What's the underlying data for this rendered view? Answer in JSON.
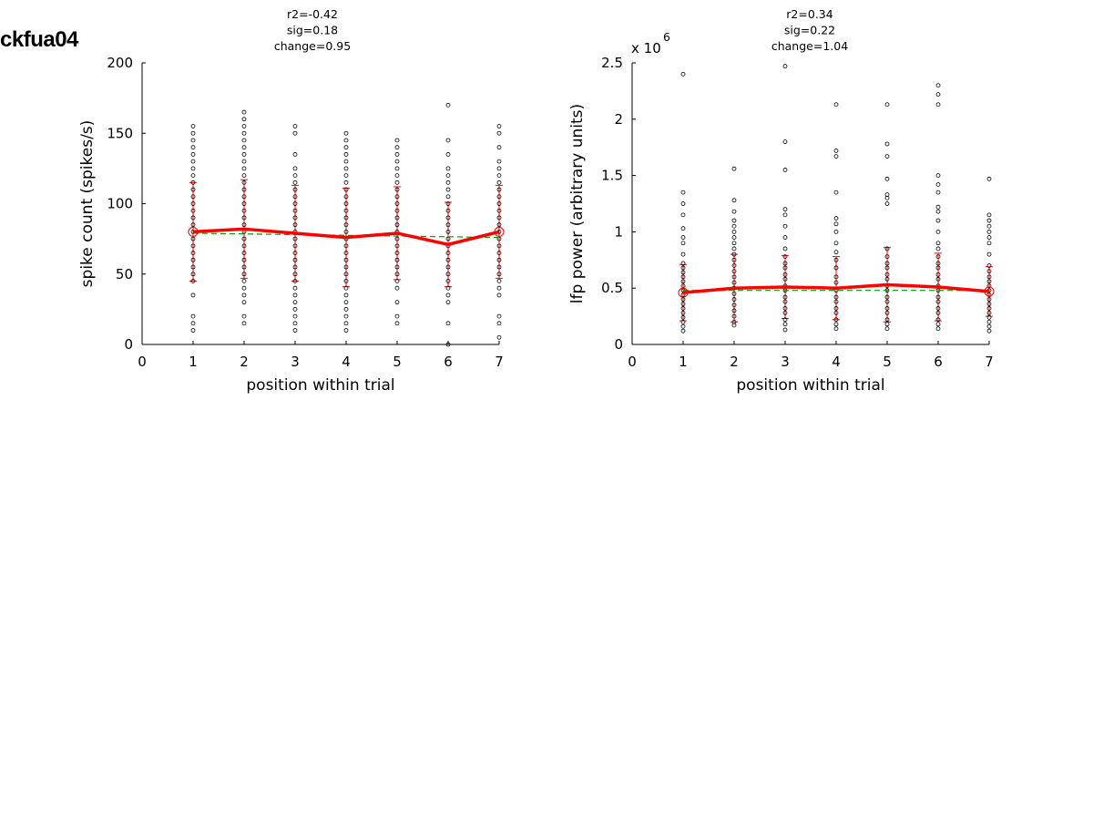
{
  "page_title": "ckfua04",
  "chart_data": [
    {
      "type": "scatter",
      "id": "spike",
      "title_lines": [
        "r2=-0.42",
        "sig=0.18",
        "change=0.95"
      ],
      "xlabel": "position within trial",
      "ylabel": "spike count (spikes/s)",
      "xlim": [
        0,
        7
      ],
      "ylim": [
        0,
        200
      ],
      "xticks": [
        "0",
        "1",
        "2",
        "3",
        "4",
        "5",
        "6",
        "7"
      ],
      "yticks": [
        "0",
        "50",
        "100",
        "150",
        "200"
      ],
      "scatter": [
        {
          "x": 1,
          "values": [
            10,
            15,
            20,
            35,
            45,
            50,
            55,
            60,
            65,
            70,
            75,
            80,
            85,
            90,
            95,
            100,
            105,
            110,
            115,
            120,
            125,
            130,
            135,
            140,
            145,
            150,
            155
          ]
        },
        {
          "x": 2,
          "values": [
            15,
            20,
            30,
            35,
            40,
            45,
            50,
            55,
            60,
            65,
            70,
            75,
            80,
            85,
            90,
            95,
            100,
            105,
            110,
            115,
            120,
            125,
            130,
            135,
            140,
            145,
            150,
            155,
            160,
            165
          ]
        },
        {
          "x": 3,
          "values": [
            10,
            15,
            20,
            25,
            30,
            35,
            40,
            45,
            50,
            55,
            60,
            65,
            70,
            75,
            80,
            85,
            90,
            95,
            100,
            105,
            110,
            115,
            120,
            125,
            135,
            150,
            155
          ]
        },
        {
          "x": 4,
          "values": [
            10,
            15,
            20,
            25,
            30,
            35,
            40,
            45,
            50,
            55,
            60,
            65,
            70,
            75,
            80,
            85,
            90,
            95,
            100,
            105,
            110,
            115,
            120,
            125,
            130,
            135,
            140,
            145,
            150
          ]
        },
        {
          "x": 5,
          "values": [
            15,
            20,
            30,
            40,
            45,
            50,
            55,
            60,
            65,
            70,
            75,
            80,
            85,
            90,
            95,
            100,
            105,
            110,
            115,
            120,
            125,
            130,
            135,
            140,
            145
          ]
        },
        {
          "x": 6,
          "values": [
            0,
            15,
            30,
            35,
            40,
            45,
            50,
            55,
            60,
            65,
            70,
            75,
            80,
            85,
            90,
            95,
            100,
            105,
            110,
            115,
            120,
            125,
            135,
            145,
            170
          ]
        },
        {
          "x": 7,
          "values": [
            5,
            15,
            20,
            35,
            40,
            45,
            50,
            55,
            60,
            65,
            70,
            75,
            80,
            85,
            90,
            95,
            100,
            105,
            110,
            115,
            120,
            125,
            130,
            140,
            150,
            155
          ]
        }
      ],
      "mean": {
        "x": [
          1,
          2,
          3,
          4,
          5,
          6,
          7
        ],
        "y": [
          80,
          82,
          79,
          76,
          79,
          71,
          80
        ]
      },
      "error": [
        35,
        35,
        34,
        35,
        33,
        30,
        33
      ],
      "fit": {
        "x": [
          1,
          7
        ],
        "y": [
          79,
          76
        ]
      },
      "colors": {
        "mean": "#ff0000",
        "fit": "#00a000",
        "points": "#000000"
      }
    },
    {
      "type": "scatter",
      "id": "lfp",
      "title_lines": [
        "r2=0.34",
        "sig=0.22",
        "change=1.04"
      ],
      "xlabel": "position within trial",
      "ylabel": "lfp power (arbitrary units)",
      "exponent_label": "x 10",
      "exponent": "6",
      "xlim": [
        0,
        7
      ],
      "ylim": [
        0,
        2.5
      ],
      "xticks": [
        "0",
        "1",
        "2",
        "3",
        "4",
        "5",
        "6",
        "7"
      ],
      "yticks": [
        "0",
        "0.5",
        "1",
        "1.5",
        "2",
        "2.5"
      ],
      "scatter": [
        {
          "x": 1,
          "values": [
            0.12,
            0.16,
            0.2,
            0.24,
            0.28,
            0.32,
            0.36,
            0.4,
            0.44,
            0.48,
            0.52,
            0.56,
            0.6,
            0.64,
            0.68,
            0.72,
            0.8,
            0.9,
            0.95,
            1.03,
            1.15,
            1.25,
            1.35,
            2.4
          ]
        },
        {
          "x": 2,
          "values": [
            0.17,
            0.2,
            0.25,
            0.3,
            0.35,
            0.4,
            0.45,
            0.5,
            0.55,
            0.6,
            0.65,
            0.7,
            0.75,
            0.8,
            0.85,
            0.9,
            0.95,
            1.0,
            1.05,
            1.1,
            1.18,
            1.28,
            1.56
          ]
        },
        {
          "x": 3,
          "values": [
            0.13,
            0.18,
            0.22,
            0.28,
            0.32,
            0.38,
            0.42,
            0.48,
            0.52,
            0.58,
            0.62,
            0.68,
            0.72,
            0.78,
            0.85,
            0.95,
            1.05,
            1.15,
            1.2,
            1.55,
            1.8,
            2.47
          ]
        },
        {
          "x": 4,
          "values": [
            0.14,
            0.18,
            0.22,
            0.28,
            0.32,
            0.38,
            0.42,
            0.48,
            0.55,
            0.6,
            0.68,
            0.75,
            0.82,
            0.9,
            1.0,
            1.07,
            1.12,
            1.35,
            1.67,
            1.72,
            2.13
          ]
        },
        {
          "x": 5,
          "values": [
            0.14,
            0.18,
            0.22,
            0.28,
            0.32,
            0.38,
            0.42,
            0.48,
            0.52,
            0.58,
            0.62,
            0.68,
            0.72,
            0.78,
            0.85,
            1.25,
            1.3,
            1.33,
            1.47,
            1.67,
            1.78,
            2.13
          ]
        },
        {
          "x": 6,
          "values": [
            0.14,
            0.18,
            0.22,
            0.28,
            0.32,
            0.38,
            0.42,
            0.48,
            0.52,
            0.58,
            0.62,
            0.68,
            0.72,
            0.78,
            0.85,
            0.9,
            1.0,
            1.1,
            1.18,
            1.22,
            1.35,
            1.42,
            1.5,
            2.13,
            2.22,
            2.3
          ]
        },
        {
          "x": 7,
          "values": [
            0.12,
            0.16,
            0.2,
            0.24,
            0.28,
            0.32,
            0.36,
            0.4,
            0.44,
            0.48,
            0.52,
            0.56,
            0.6,
            0.65,
            0.7,
            0.8,
            0.9,
            0.95,
            1.0,
            1.05,
            1.1,
            1.15,
            1.47
          ]
        }
      ],
      "mean": {
        "x": [
          1,
          2,
          3,
          4,
          5,
          6,
          7
        ],
        "y": [
          0.46,
          0.5,
          0.51,
          0.5,
          0.53,
          0.51,
          0.47
        ]
      },
      "error": [
        0.25,
        0.3,
        0.28,
        0.28,
        0.33,
        0.3,
        0.22
      ],
      "fit": {
        "x": [
          1,
          7
        ],
        "y": [
          0.48,
          0.48
        ]
      },
      "colors": {
        "mean": "#ff0000",
        "fit": "#00a000",
        "points": "#000000"
      }
    }
  ]
}
